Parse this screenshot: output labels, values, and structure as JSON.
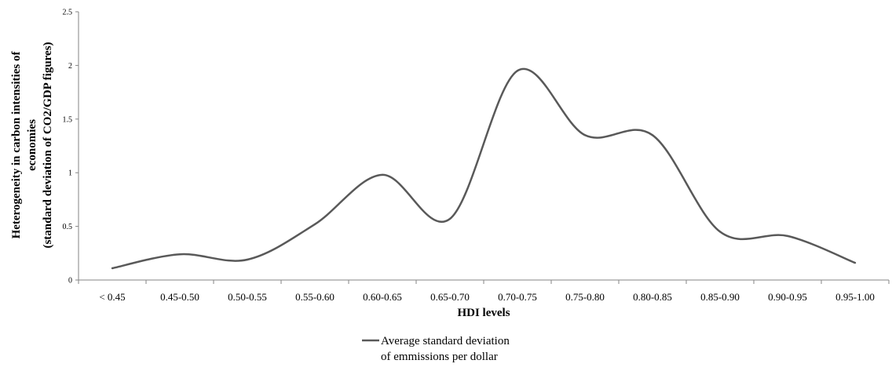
{
  "chart_data": {
    "type": "line",
    "title": "",
    "xlabel": "HDI levels",
    "ylabel_lines": [
      "Heterogeneity in carbon intensities of",
      "economies",
      "(standard deviation of CO2/GDP figures)"
    ],
    "categories": [
      "< 0.45",
      "0.45-0.50",
      "0.50-0.55",
      "0.55-0.60",
      "0.60-0.65",
      "0.65-0.70",
      "0.70-0.75",
      "0.75-0.80",
      "0.80-0.85",
      "0.85-0.90",
      "0.90-0.95",
      "0.95-1.00"
    ],
    "ylim": [
      0,
      2.5
    ],
    "yticks": [
      0,
      0.5,
      1,
      1.5,
      2,
      2.5
    ],
    "ytick_labels": [
      "0",
      "0.5",
      "1",
      "1.5",
      "2",
      "2.5"
    ],
    "grid": false,
    "smooth": true,
    "legend_position": "bottom",
    "series": [
      {
        "name_lines": [
          "Average standard deviation",
          "of emmissions per dollar"
        ],
        "color": "#595959",
        "values": [
          0.11,
          0.24,
          0.19,
          0.52,
          0.98,
          0.57,
          1.95,
          1.35,
          1.35,
          0.45,
          0.41,
          0.16
        ]
      }
    ]
  }
}
